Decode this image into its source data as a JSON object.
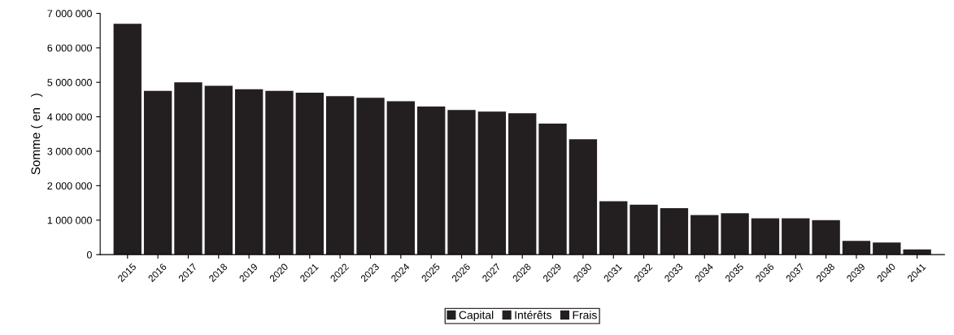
{
  "chart_data": {
    "type": "bar",
    "ylabel": "Somme ( en   )",
    "categories": [
      "2015",
      "2016",
      "2017",
      "2018",
      "2019",
      "2020",
      "2021",
      "2022",
      "2023",
      "2024",
      "2025",
      "2026",
      "2027",
      "2028",
      "2029",
      "2030",
      "2031",
      "2032",
      "2033",
      "2034",
      "2035",
      "2036",
      "2037",
      "2038",
      "2039",
      "2040",
      "2041"
    ],
    "series": [
      {
        "name": "Capital",
        "color": "#231f20",
        "values": [
          6700000,
          4750000,
          5000000,
          4900000,
          4800000,
          4750000,
          4700000,
          4600000,
          4550000,
          4450000,
          4300000,
          4200000,
          4150000,
          4100000,
          3800000,
          3350000,
          1550000,
          1450000,
          1350000,
          1150000,
          1200000,
          1050000,
          1050000,
          1000000,
          400000,
          350000,
          150000
        ]
      },
      {
        "name": "Intérêts",
        "color": "#231f20",
        "values": [
          null,
          null,
          null,
          null,
          null,
          null,
          null,
          null,
          null,
          null,
          null,
          null,
          null,
          null,
          null,
          null,
          null,
          null,
          null,
          null,
          null,
          null,
          null,
          null,
          null,
          null,
          null
        ]
      },
      {
        "name": "Frais",
        "color": "#231f20",
        "values": [
          null,
          null,
          null,
          null,
          null,
          null,
          null,
          null,
          null,
          null,
          null,
          null,
          null,
          null,
          null,
          null,
          null,
          null,
          null,
          null,
          null,
          null,
          null,
          null,
          null,
          null,
          null
        ]
      }
    ],
    "ylim": [
      0,
      7000000
    ],
    "yticks": [
      0,
      {
        "value": 1000000,
        "label": "1 000 000"
      },
      {
        "value": 2000000,
        "label": "2 000 000"
      },
      {
        "value": 3000000,
        "label": "3 000 000"
      },
      {
        "value": 4000000,
        "label": "4 000 000"
      },
      {
        "value": 5000000,
        "label": "5 000 000"
      },
      {
        "value": 6000000,
        "label": "6 000 000"
      },
      {
        "value": 7000000,
        "label": "7 000 000"
      }
    ],
    "grid": false,
    "legend": "bottom"
  }
}
